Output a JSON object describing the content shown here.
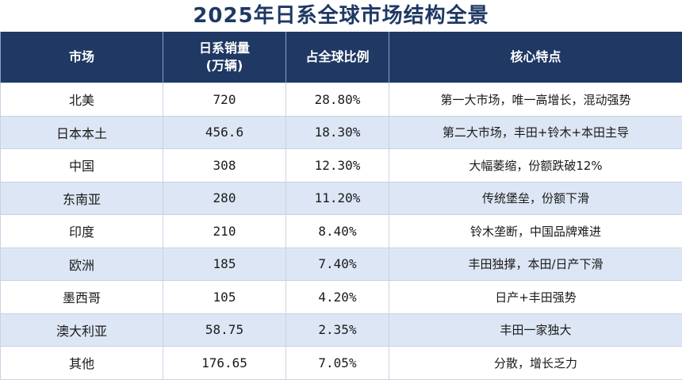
{
  "title": "2025年日系全球市场结构全景",
  "headers": {
    "market": "市场",
    "sales_line1": "日系销量",
    "sales_line2": "(万辆)",
    "share": "占全球比例",
    "feature": "核心特点"
  },
  "rows": [
    {
      "market": "北美",
      "sales": "720",
      "share": "28.80%",
      "feature": "第一大市场，唯一高增长，混动强势"
    },
    {
      "market": "日本本土",
      "sales": "456.6",
      "share": "18.30%",
      "feature": "第二大市场，丰田+铃木+本田主导"
    },
    {
      "market": "中国",
      "sales": "308",
      "share": "12.30%",
      "feature": "大幅萎缩，份额跌破12%"
    },
    {
      "market": "东南亚",
      "sales": "280",
      "share": "11.20%",
      "feature": "传统堡垒，份额下滑"
    },
    {
      "market": "印度",
      "sales": "210",
      "share": "8.40%",
      "feature": "铃木垄断，中国品牌难进"
    },
    {
      "market": "欧洲",
      "sales": "185",
      "share": "7.40%",
      "feature": "丰田独撑，本田/日产下滑"
    },
    {
      "market": "墨西哥",
      "sales": "105",
      "share": "4.20%",
      "feature": "日产+丰田强势"
    },
    {
      "market": "澳大利亚",
      "sales": "58.75",
      "share": "2.35%",
      "feature": "丰田一家独大"
    },
    {
      "market": "其他",
      "sales": "176.65",
      "share": "7.05%",
      "feature": "分散，增长乏力"
    }
  ]
}
